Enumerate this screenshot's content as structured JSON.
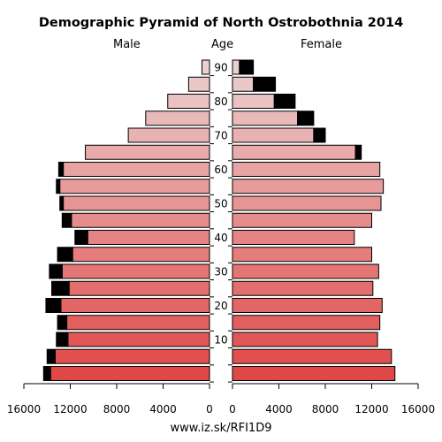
{
  "chart_data": {
    "type": "bar",
    "title": "Demographic Pyramid of North Ostrobothnia 2014",
    "left_label": "Male",
    "center_label": "Age",
    "right_label": "Female",
    "x_ticks_male": [
      "16000",
      "12000",
      "8000",
      "4000",
      "0"
    ],
    "x_ticks_female": [
      "0",
      "4000",
      "8000",
      "12000",
      "16000"
    ],
    "x_tick_values": [
      0,
      4000,
      8000,
      12000,
      16000
    ],
    "xlim": [
      0,
      16000
    ],
    "age_tick_labels": [
      "10",
      "20",
      "30",
      "40",
      "50",
      "60",
      "70",
      "80",
      "90"
    ],
    "age_groups": [
      "0-4",
      "5-9",
      "10-14",
      "15-19",
      "20-24",
      "25-29",
      "30-34",
      "35-39",
      "40-44",
      "45-49",
      "50-54",
      "55-59",
      "60-64",
      "65-69",
      "70-74",
      "75-79",
      "80-84",
      "85-89",
      "90+"
    ],
    "male_total": [
      14300,
      14000,
      13200,
      13100,
      14100,
      13600,
      13800,
      13100,
      11600,
      12700,
      12900,
      13200,
      13000,
      10700,
      7000,
      5500,
      3600,
      1800,
      650
    ],
    "male_excess": [
      600,
      700,
      1000,
      800,
      1300,
      1500,
      1100,
      1300,
      1100,
      800,
      300,
      300,
      400,
      0,
      0,
      0,
      0,
      0,
      0
    ],
    "female_total": [
      14000,
      13700,
      12500,
      12700,
      12900,
      12100,
      12600,
      12000,
      10500,
      12000,
      12800,
      13000,
      12700,
      11100,
      8000,
      7000,
      5400,
      3700,
      1800
    ],
    "female_excess": [
      0,
      0,
      0,
      0,
      0,
      0,
      0,
      0,
      0,
      0,
      0,
      0,
      0,
      500,
      1000,
      1400,
      1800,
      1900,
      1200
    ],
    "colors": {
      "young": "#e04848",
      "old": "#ecd0d0",
      "excess": "#000000",
      "stroke": "#000000"
    },
    "source": "www.iz.sk/RFI1D9"
  }
}
